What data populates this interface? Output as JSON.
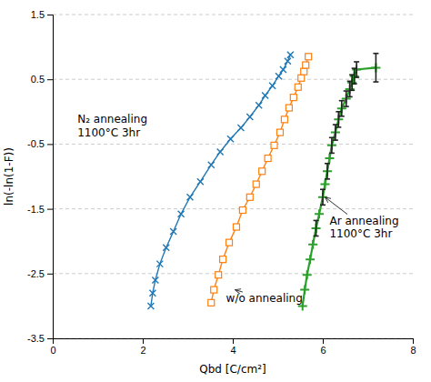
{
  "chart_data": {
    "type": "line",
    "title": "",
    "xlabel": "Qbd [C/cm²]",
    "ylabel": "ln(-ln(1-F))",
    "xlim": [
      0,
      8
    ],
    "ylim": [
      -3.5,
      1.5
    ],
    "xticks": [
      0,
      2,
      4,
      6,
      8
    ],
    "yticks": [
      -3.5,
      -2.5,
      -1.5,
      -0.5,
      0.5,
      1.5
    ],
    "grid": true,
    "series": [
      {
        "marker": "x",
        "line_style": "solid",
        "x": [
          2.18,
          2.22,
          2.28,
          2.38,
          2.52,
          2.68,
          2.85,
          3.05,
          3.28,
          3.52,
          3.72,
          3.95,
          4.18,
          4.38,
          4.58,
          4.72,
          4.88,
          5.02,
          5.12,
          5.22,
          5.28
        ],
        "values": [
          -3.0,
          -2.8,
          -2.6,
          -2.35,
          -2.1,
          -1.85,
          -1.58,
          -1.32,
          -1.08,
          -0.82,
          -0.62,
          -0.42,
          -0.25,
          -0.08,
          0.1,
          0.25,
          0.4,
          0.55,
          0.65,
          0.78,
          0.88
        ]
      },
      {
        "marker": "square",
        "line_style": "solid",
        "x": [
          3.52,
          3.58,
          3.68,
          3.78,
          3.92,
          4.08,
          4.22,
          4.38,
          4.52,
          4.65,
          4.78,
          4.92,
          5.05,
          5.15,
          5.25,
          5.35,
          5.45,
          5.52,
          5.58,
          5.62,
          5.68
        ],
        "values": [
          -2.95,
          -2.75,
          -2.52,
          -2.28,
          -2.02,
          -1.78,
          -1.52,
          -1.32,
          -1.12,
          -0.92,
          -0.72,
          -0.52,
          -0.32,
          -0.12,
          0.06,
          0.22,
          0.38,
          0.52,
          0.62,
          0.72,
          0.85
        ]
      },
      {
        "marker": "plus",
        "line_style": "solid",
        "x": [
          5.55,
          5.6,
          5.65,
          5.72,
          5.78,
          5.85,
          5.92,
          6.0,
          6.05,
          6.1,
          6.15,
          6.2,
          6.28,
          6.35,
          6.42,
          6.52,
          6.6,
          6.65,
          6.7,
          6.75,
          7.18
        ],
        "values": [
          -3.0,
          -2.75,
          -2.52,
          -2.28,
          -2.05,
          -1.8,
          -1.58,
          -1.32,
          -1.12,
          -0.92,
          -0.72,
          -0.52,
          -0.32,
          -0.12,
          0.05,
          0.2,
          0.35,
          0.45,
          0.55,
          0.65,
          0.68
        ],
        "error_x": [
          5.85,
          6.0,
          6.1,
          6.2,
          6.28,
          6.35,
          6.42,
          6.52,
          6.6,
          6.65,
          6.7,
          6.75,
          7.18
        ],
        "error_y": [
          -1.8,
          -1.32,
          -0.92,
          -0.52,
          -0.32,
          -0.12,
          0.05,
          0.2,
          0.35,
          0.45,
          0.55,
          0.65,
          0.68
        ],
        "error": [
          0.12,
          0.12,
          0.12,
          0.12,
          0.12,
          0.12,
          0.12,
          0.12,
          0.12,
          0.12,
          0.12,
          0.12,
          0.22
        ]
      }
    ],
    "annotations": [
      {
        "text": "N₂ annealing\n1100°C 3hr",
        "x": 0.55,
        "y": -0.22
      },
      {
        "text": "Ar annealing\n1100°C 3hr",
        "x": 6.15,
        "y": -1.78,
        "arrow_x": 6.05,
        "arrow_y": -1.32
      },
      {
        "text": "w/o annealing",
        "x": 3.85,
        "y": -2.88,
        "arrow_x": 4.05,
        "arrow_y": -2.75
      }
    ]
  }
}
